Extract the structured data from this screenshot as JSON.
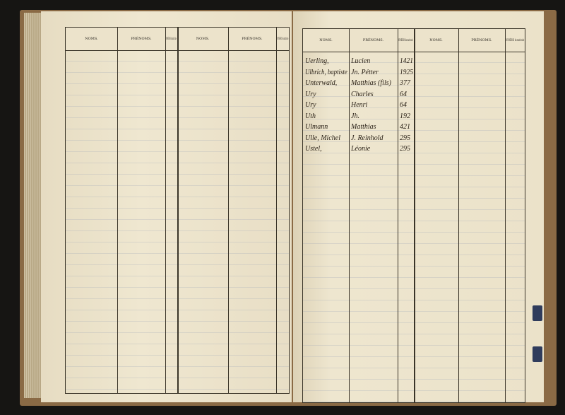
{
  "headers": {
    "noms": "NOMS.",
    "prenoms": "PRÉNOMS.",
    "numeros": "NUMÉROS du matricule"
  },
  "entries": [
    {
      "nom": "Uerling,",
      "prenom": "Lucien",
      "numero": "1421"
    },
    {
      "nom": "Ulbrich, baptiste",
      "prenom": "Jn. Pétter",
      "numero": "1925"
    },
    {
      "nom": "Unterwald,",
      "prenom": "Matthias (fils)",
      "numero": "377"
    },
    {
      "nom": "Ury",
      "prenom": "Charles",
      "numero": "64"
    },
    {
      "nom": "Ury",
      "prenom": "Henri",
      "numero": "64"
    },
    {
      "nom": "Uth",
      "prenom": "Jh.",
      "numero": "192"
    },
    {
      "nom": "Ulmann",
      "prenom": "Matthias",
      "numero": "421"
    },
    {
      "nom": "Ulle, Michel",
      "prenom": "J. Reinhold",
      "numero": "295"
    },
    {
      "nom": "Ustel,",
      "prenom": "Léonie",
      "numero": "295"
    }
  ],
  "colors": {
    "paper": "#ece3cb",
    "ink": "#2b2218",
    "cover": "#8a6a45",
    "tab": "#2f3c5c"
  }
}
